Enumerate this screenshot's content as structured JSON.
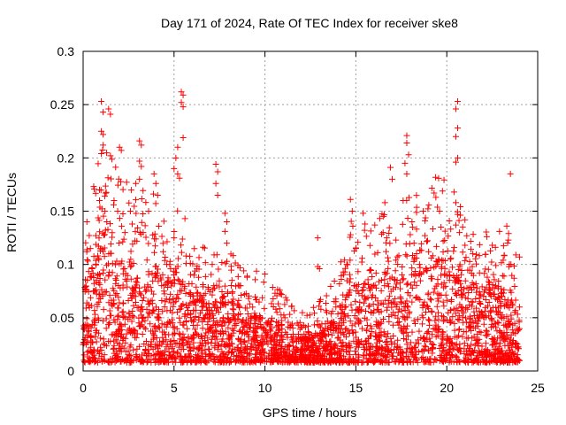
{
  "chart_data": {
    "type": "scatter",
    "title": "Day 171 of 2024, Rate Of TEC Index for receiver ske8",
    "xlabel": "GPS time / hours",
    "ylabel": "ROTI / TECUs",
    "xlim": [
      0,
      25
    ],
    "ylim": [
      0,
      0.3
    ],
    "x_ticks": [
      0,
      5,
      10,
      15,
      20,
      25
    ],
    "x_tick_labels": [
      "0",
      "5",
      "10",
      "15",
      "20",
      "25"
    ],
    "y_ticks": [
      0,
      0.05,
      0.1,
      0.15,
      0.2,
      0.25,
      0.3
    ],
    "y_tick_labels": [
      "0",
      "0.05",
      "0.1",
      "0.15",
      "0.2",
      "0.25",
      "0.3"
    ],
    "grid": true,
    "marker": "plus",
    "series": [
      {
        "name": "ROTI",
        "color": "#ff0000",
        "points": [
          [
            1.0,
            0.253
          ],
          [
            1.1,
            0.243
          ],
          [
            1.4,
            0.246
          ],
          [
            1.5,
            0.241
          ],
          [
            1.0,
            0.225
          ],
          [
            1.1,
            0.222
          ],
          [
            1.1,
            0.212
          ],
          [
            1.0,
            0.204
          ],
          [
            1.5,
            0.202
          ],
          [
            2.0,
            0.21
          ],
          [
            2.1,
            0.207
          ],
          [
            3.1,
            0.216
          ],
          [
            3.2,
            0.212
          ],
          [
            3.1,
            0.197
          ],
          [
            3.2,
            0.192
          ],
          [
            3.1,
            0.18
          ],
          [
            2.9,
            0.176
          ],
          [
            3.9,
            0.185
          ],
          [
            4.0,
            0.176
          ],
          [
            4.1,
            0.165
          ],
          [
            5.1,
            0.2
          ],
          [
            5.0,
            0.19
          ],
          [
            5.2,
            0.185
          ],
          [
            5.3,
            0.181
          ],
          [
            5.2,
            0.21
          ],
          [
            5.4,
            0.262
          ],
          [
            5.5,
            0.259
          ],
          [
            5.4,
            0.252
          ],
          [
            5.5,
            0.248
          ],
          [
            5.5,
            0.219
          ],
          [
            5.6,
            0.143
          ],
          [
            7.3,
            0.194
          ],
          [
            7.4,
            0.187
          ],
          [
            7.3,
            0.176
          ],
          [
            7.4,
            0.165
          ],
          [
            7.8,
            0.148
          ],
          [
            7.9,
            0.14
          ],
          [
            7.8,
            0.131
          ],
          [
            7.9,
            0.12
          ],
          [
            7.2,
            0.109
          ],
          [
            7.1,
            0.1
          ],
          [
            10.0,
            0.091
          ],
          [
            12.9,
            0.125
          ],
          [
            12.9,
            0.098
          ],
          [
            13.0,
            0.096
          ],
          [
            14.7,
            0.161
          ],
          [
            14.8,
            0.15
          ],
          [
            15.4,
            0.148
          ],
          [
            15.5,
            0.138
          ],
          [
            16.9,
            0.191
          ],
          [
            17.0,
            0.18
          ],
          [
            16.5,
            0.13
          ],
          [
            17.8,
            0.221
          ],
          [
            17.8,
            0.214
          ],
          [
            17.9,
            0.203
          ],
          [
            17.7,
            0.195
          ],
          [
            17.8,
            0.185
          ],
          [
            17.6,
            0.16
          ],
          [
            18.7,
            0.15
          ],
          [
            18.8,
            0.141
          ],
          [
            19.3,
            0.167
          ],
          [
            19.4,
            0.163
          ],
          [
            19.6,
            0.15
          ],
          [
            20.6,
            0.253
          ],
          [
            20.5,
            0.246
          ],
          [
            20.6,
            0.228
          ],
          [
            20.5,
            0.22
          ],
          [
            20.6,
            0.2
          ],
          [
            20.5,
            0.196
          ],
          [
            20.4,
            0.168
          ],
          [
            20.5,
            0.158
          ],
          [
            20.6,
            0.147
          ],
          [
            20.5,
            0.137
          ],
          [
            20.7,
            0.13
          ],
          [
            21.0,
            0.118
          ],
          [
            22.2,
            0.126
          ],
          [
            22.5,
            0.118
          ],
          [
            22.9,
            0.131
          ],
          [
            23.3,
            0.136
          ],
          [
            23.4,
            0.129
          ],
          [
            23.5,
            0.185
          ],
          [
            23.8,
            0.109
          ],
          [
            24.0,
            0.107
          ],
          [
            0.2,
            0.112
          ],
          [
            0.4,
            0.115
          ],
          [
            0.7,
            0.127
          ],
          [
            0.9,
            0.17
          ],
          [
            0.9,
            0.16
          ],
          [
            1.2,
            0.15
          ],
          [
            1.3,
            0.14
          ],
          [
            1.7,
            0.16
          ],
          [
            1.9,
            0.15
          ],
          [
            2.3,
            0.13
          ],
          [
            2.6,
            0.15
          ],
          [
            2.7,
            0.138
          ],
          [
            3.3,
            0.13
          ],
          [
            3.6,
            0.15
          ],
          [
            4.4,
            0.112
          ],
          [
            4.6,
            0.1
          ],
          [
            5.0,
            0.125
          ],
          [
            5.9,
            0.101
          ],
          [
            6.1,
            0.09
          ],
          [
            6.6,
            0.079
          ],
          [
            8.2,
            0.073
          ],
          [
            8.6,
            0.08
          ],
          [
            9.1,
            0.068
          ],
          [
            9.5,
            0.067
          ],
          [
            10.6,
            0.058
          ],
          [
            11.1,
            0.05
          ],
          [
            11.5,
            0.044
          ],
          [
            12.0,
            0.041
          ],
          [
            12.4,
            0.036
          ],
          [
            13.4,
            0.055
          ],
          [
            13.9,
            0.06
          ],
          [
            14.2,
            0.086
          ],
          [
            14.5,
            0.1
          ],
          [
            15.0,
            0.115
          ],
          [
            15.8,
            0.095
          ],
          [
            16.2,
            0.111
          ],
          [
            16.7,
            0.125
          ],
          [
            17.2,
            0.104
          ],
          [
            18.2,
            0.12
          ],
          [
            18.5,
            0.1
          ],
          [
            19.0,
            0.112
          ],
          [
            19.8,
            0.122
          ],
          [
            20.2,
            0.105
          ],
          [
            21.4,
            0.098
          ],
          [
            21.8,
            0.092
          ],
          [
            22.7,
            0.099
          ],
          [
            23.1,
            0.104
          ],
          [
            23.7,
            0.087
          ],
          [
            24.0,
            0.06
          ]
        ],
        "envelope": {
          "x": [
            0,
            0.5,
            1,
            1.5,
            2,
            2.5,
            3,
            3.5,
            4,
            4.5,
            5,
            5.5,
            6,
            6.5,
            7,
            7.5,
            8,
            8.5,
            9,
            9.5,
            10,
            10.5,
            11,
            11.5,
            12,
            12.5,
            13,
            13.5,
            14,
            14.5,
            15,
            15.5,
            16,
            16.5,
            17,
            17.5,
            18,
            18.5,
            19,
            19.5,
            20,
            20.5,
            21,
            21.5,
            22,
            22.5,
            23,
            23.5,
            24
          ],
          "upper": [
            0.07,
            0.09,
            0.11,
            0.11,
            0.1,
            0.1,
            0.09,
            0.09,
            0.09,
            0.08,
            0.09,
            0.08,
            0.07,
            0.065,
            0.06,
            0.065,
            0.06,
            0.055,
            0.05,
            0.05,
            0.045,
            0.045,
            0.04,
            0.035,
            0.03,
            0.03,
            0.035,
            0.04,
            0.05,
            0.07,
            0.08,
            0.075,
            0.08,
            0.085,
            0.085,
            0.085,
            0.09,
            0.09,
            0.095,
            0.1,
            0.095,
            0.085,
            0.08,
            0.075,
            0.07,
            0.07,
            0.07,
            0.065,
            0.05
          ],
          "lower": 0.008
        }
      }
    ]
  }
}
